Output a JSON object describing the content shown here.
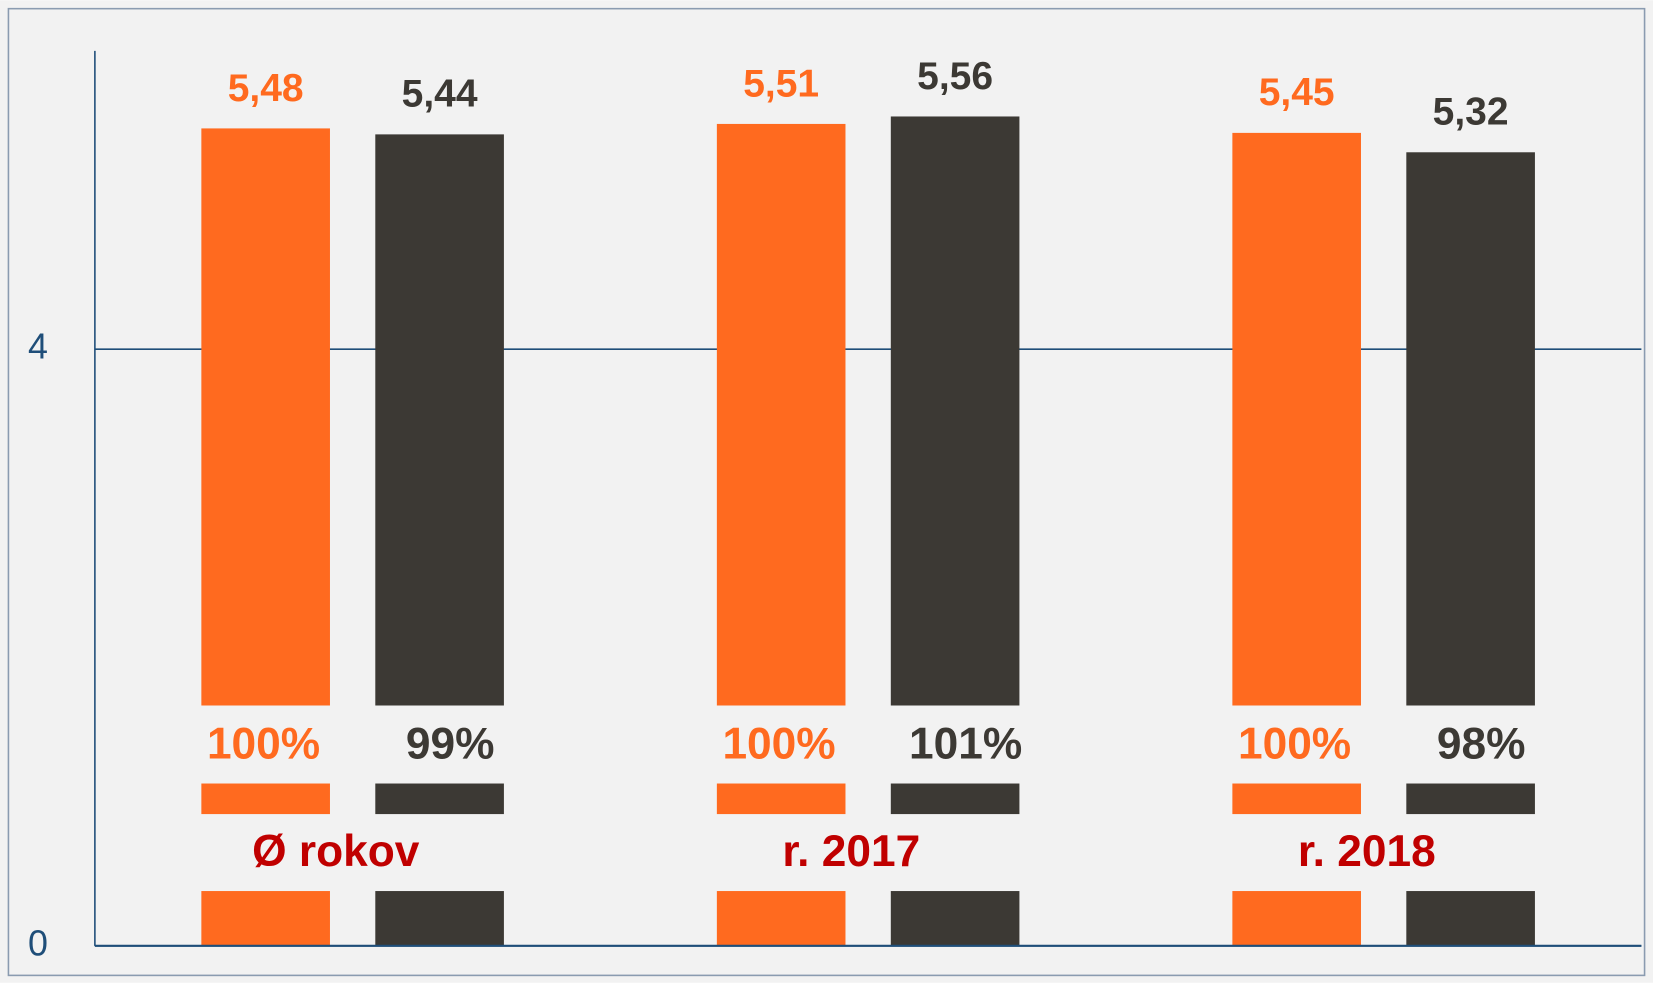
{
  "chart_data": {
    "type": "bar",
    "categories": [
      "Ø rokov",
      "r. 2017",
      "r. 2018"
    ],
    "series": [
      {
        "color": "#ff6a1f",
        "values": [
          5.48,
          5.51,
          5.45
        ],
        "value_labels": [
          "5,48",
          "5,51",
          "5,45"
        ],
        "percent_labels": [
          "100%",
          "100%",
          "100%"
        ]
      },
      {
        "color": "#3c3934",
        "values": [
          5.44,
          5.56,
          5.32
        ],
        "value_labels": [
          "5,44",
          "5,56",
          "5,32"
        ],
        "percent_labels": [
          "99%",
          "101%",
          "98%"
        ]
      }
    ],
    "ylim": [
      0,
      6
    ],
    "yticks": [
      0,
      4
    ],
    "grid": true
  }
}
